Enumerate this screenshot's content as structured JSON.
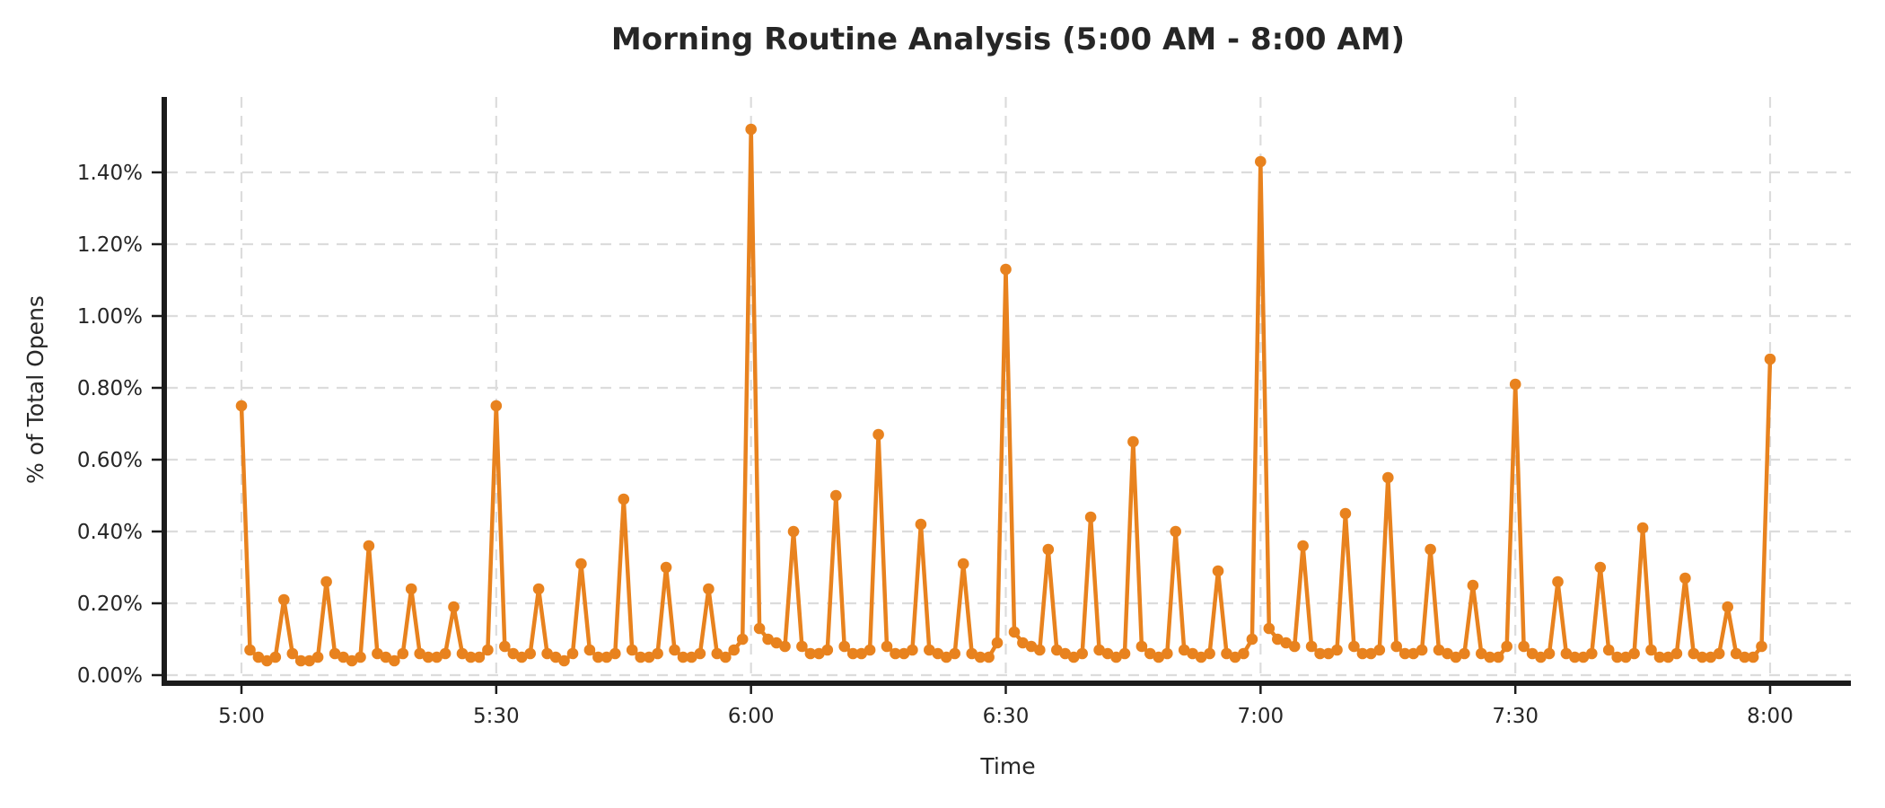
{
  "title": "Morning Routine Analysis (5:00 AM - 8:00 AM)",
  "colors": {
    "line": "#E8821E",
    "marker": "#E8821E",
    "grid": "#DCDCDC",
    "spine": "#1C1C1C",
    "text": "#262626",
    "background": "#FFFFFF"
  },
  "chart_data": {
    "type": "line",
    "title": "Morning Routine Analysis (5:00 AM - 8:00 AM)",
    "xlabel": "Time",
    "ylabel": "% of Total Opens",
    "legend": "none",
    "grid": "dashed, both axes",
    "x_unit": "minutes after 5:00 AM, one point per minute",
    "x_range_minutes": [
      0,
      180
    ],
    "xtick_minutes": [
      0,
      30,
      60,
      90,
      120,
      150,
      180
    ],
    "xtick_labels": [
      "5:00",
      "5:30",
      "6:00",
      "6:30",
      "7:00",
      "7:30",
      "8:00"
    ],
    "ytick_percent": [
      0.0,
      0.2,
      0.4,
      0.6,
      0.8,
      1.0,
      1.2,
      1.4
    ],
    "ytick_labels": [
      "0.00%",
      "0.20%",
      "0.40%",
      "0.60%",
      "0.80%",
      "1.00%",
      "1.20%",
      "1.40%"
    ],
    "ylim_percent": [
      -0.02,
      1.61
    ],
    "values_percent": [
      0.75,
      0.07,
      0.05,
      0.04,
      0.05,
      0.21,
      0.06,
      0.04,
      0.04,
      0.05,
      0.26,
      0.06,
      0.05,
      0.04,
      0.05,
      0.36,
      0.06,
      0.05,
      0.04,
      0.06,
      0.24,
      0.06,
      0.05,
      0.05,
      0.06,
      0.19,
      0.06,
      0.05,
      0.05,
      0.07,
      0.75,
      0.08,
      0.06,
      0.05,
      0.06,
      0.24,
      0.06,
      0.05,
      0.04,
      0.06,
      0.31,
      0.07,
      0.05,
      0.05,
      0.06,
      0.49,
      0.07,
      0.05,
      0.05,
      0.06,
      0.3,
      0.07,
      0.05,
      0.05,
      0.06,
      0.24,
      0.06,
      0.05,
      0.07,
      0.1,
      1.52,
      0.13,
      0.1,
      0.09,
      0.08,
      0.4,
      0.08,
      0.06,
      0.06,
      0.07,
      0.5,
      0.08,
      0.06,
      0.06,
      0.07,
      0.67,
      0.08,
      0.06,
      0.06,
      0.07,
      0.42,
      0.07,
      0.06,
      0.05,
      0.06,
      0.31,
      0.06,
      0.05,
      0.05,
      0.09,
      1.13,
      0.12,
      0.09,
      0.08,
      0.07,
      0.35,
      0.07,
      0.06,
      0.05,
      0.06,
      0.44,
      0.07,
      0.06,
      0.05,
      0.06,
      0.65,
      0.08,
      0.06,
      0.05,
      0.06,
      0.4,
      0.07,
      0.06,
      0.05,
      0.06,
      0.29,
      0.06,
      0.05,
      0.06,
      0.1,
      1.43,
      0.13,
      0.1,
      0.09,
      0.08,
      0.36,
      0.08,
      0.06,
      0.06,
      0.07,
      0.45,
      0.08,
      0.06,
      0.06,
      0.07,
      0.55,
      0.08,
      0.06,
      0.06,
      0.07,
      0.35,
      0.07,
      0.06,
      0.05,
      0.06,
      0.25,
      0.06,
      0.05,
      0.05,
      0.08,
      0.81,
      0.08,
      0.06,
      0.05,
      0.06,
      0.26,
      0.06,
      0.05,
      0.05,
      0.06,
      0.3,
      0.07,
      0.05,
      0.05,
      0.06,
      0.41,
      0.07,
      0.05,
      0.05,
      0.06,
      0.27,
      0.06,
      0.05,
      0.05,
      0.06,
      0.19,
      0.06,
      0.05,
      0.05,
      0.08,
      0.88
    ]
  }
}
